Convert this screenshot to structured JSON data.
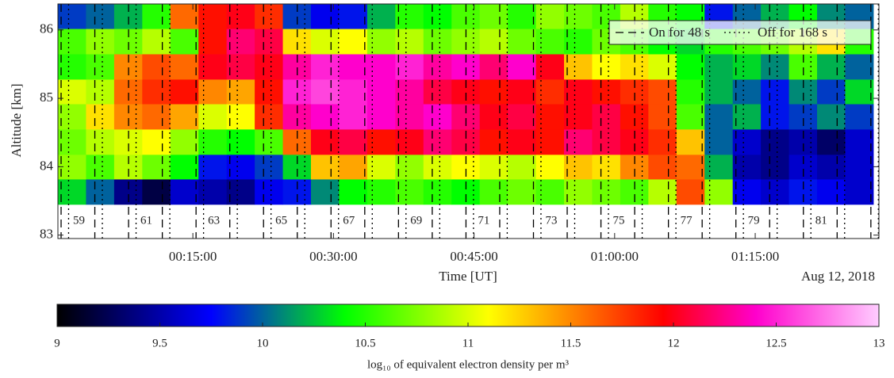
{
  "chart_data": {
    "type": "heatmap",
    "xlabel": "Time [UT]",
    "ylabel": "Altitude [km]",
    "date_label": "Aug 12, 2018",
    "xlim": [
      0.6,
      88.2
    ],
    "xticks": [
      {
        "value": 15,
        "label": "00:15:00"
      },
      {
        "value": 30,
        "label": "00:30:00"
      },
      {
        "value": 45,
        "label": "00:45:00"
      },
      {
        "value": 60,
        "label": "01:00:00"
      },
      {
        "value": 75,
        "label": "01:15:00"
      }
    ],
    "ylim": [
      82.95,
      86.38
    ],
    "yticks": [
      83,
      84,
      85,
      86
    ],
    "xbins": [
      0.6,
      3.6,
      6.6,
      9.6,
      12.6,
      15.6,
      18.6,
      21.6,
      24.6,
      27.6,
      30.6,
      33.6,
      36.6,
      39.6,
      42.6,
      45.6,
      48.6,
      51.6,
      54.6,
      57.6,
      60.6,
      63.6,
      66.6,
      69.6,
      72.6,
      75.6,
      78.6,
      81.6,
      84.6,
      87.6
    ],
    "ybins": [
      83.45,
      83.82,
      84.18,
      84.55,
      84.92,
      85.28,
      85.65,
      86.02,
      86.38
    ],
    "z": [
      [
        10.3,
        10.0,
        9.4,
        9.2,
        9.6,
        9.5,
        9.4,
        9.7,
        9.8,
        10.1,
        10.4,
        10.5,
        10.6,
        10.5,
        10.4,
        10.6,
        10.7,
        10.6,
        10.8,
        10.7,
        10.6,
        10.9,
        11.7,
        10.8,
        9.7,
        9.6,
        9.8,
        9.7,
        9.6
      ],
      [
        10.8,
        10.6,
        10.9,
        10.7,
        10.4,
        9.8,
        9.7,
        9.9,
        10.3,
        11.3,
        11.4,
        11.0,
        10.8,
        11.0,
        11.1,
        11.0,
        10.9,
        11.1,
        11.3,
        11.2,
        11.5,
        11.7,
        11.6,
        10.2,
        9.5,
        9.4,
        9.6,
        9.5,
        9.6
      ],
      [
        10.7,
        10.9,
        11.0,
        11.1,
        10.8,
        10.5,
        10.4,
        10.6,
        11.6,
        12.0,
        12.1,
        11.9,
        12.0,
        12.2,
        12.1,
        11.9,
        12.0,
        11.9,
        12.2,
        12.1,
        12.0,
        11.8,
        11.3,
        10.0,
        9.6,
        9.4,
        9.5,
        9.3,
        9.6
      ],
      [
        10.8,
        11.2,
        11.5,
        11.6,
        11.4,
        11.0,
        11.1,
        11.8,
        12.3,
        12.4,
        12.5,
        12.4,
        12.3,
        12.4,
        12.2,
        12.0,
        12.1,
        11.9,
        12.0,
        12.1,
        11.9,
        11.7,
        10.6,
        10.0,
        10.2,
        9.8,
        9.9,
        10.1,
        9.9
      ],
      [
        11.0,
        10.9,
        11.6,
        11.8,
        11.9,
        11.5,
        11.4,
        11.9,
        12.5,
        12.6,
        12.5,
        12.4,
        12.3,
        12.1,
        12.0,
        11.9,
        12.0,
        11.8,
        12.0,
        11.9,
        11.8,
        11.7,
        10.5,
        10.2,
        10.0,
        9.8,
        10.1,
        9.9,
        10.3
      ],
      [
        10.5,
        10.6,
        11.5,
        11.7,
        11.6,
        12.0,
        12.1,
        12.0,
        12.3,
        12.5,
        12.4,
        12.4,
        12.5,
        12.3,
        12.4,
        12.2,
        12.4,
        12.0,
        11.3,
        11.1,
        11.2,
        11.0,
        10.4,
        10.2,
        10.3,
        10.1,
        10.6,
        10.2,
        10.0
      ],
      [
        10.6,
        10.8,
        10.7,
        10.9,
        10.6,
        11.9,
        12.2,
        12.1,
        11.2,
        11.0,
        11.1,
        10.8,
        10.9,
        10.7,
        10.8,
        10.9,
        10.7,
        10.6,
        10.5,
        10.7,
        10.6,
        10.4,
        10.3,
        10.5,
        10.6,
        10.7,
        10.9,
        11.2,
        10.5
      ],
      [
        9.9,
        10.0,
        10.2,
        10.5,
        11.6,
        11.9,
        12.0,
        11.8,
        9.9,
        9.7,
        9.8,
        10.2,
        10.5,
        10.4,
        10.6,
        10.7,
        10.5,
        10.8,
        10.7,
        10.6,
        10.9,
        10.5,
        10.4,
        9.8,
        10.0,
        10.2,
        10.4,
        10.1,
        10.0
      ]
    ],
    "colormap": [
      [
        9,
        "#000000"
      ],
      [
        9.75,
        "#0000ff"
      ],
      [
        10.4,
        "#00ff00"
      ],
      [
        11.1,
        "#ffff00"
      ],
      [
        11.95,
        "#ff0000"
      ],
      [
        12.4,
        "#ff00cc"
      ],
      [
        13,
        "#ffccff"
      ]
    ],
    "clim": [
      9,
      13
    ],
    "colorbar_ticks": [
      9,
      9.5,
      10,
      10.5,
      11,
      11.5,
      12,
      12.5,
      13
    ],
    "colorbar_label": "log₁₀ of equivalent electron density per m³",
    "legend_position": "upper right",
    "lines": [
      {
        "name": "On for 48 s",
        "dash": "dashed",
        "x": [
          0.94,
          4.54,
          8.14,
          11.74,
          15.34,
          18.94,
          22.54,
          26.14,
          29.74,
          33.34,
          36.94,
          40.54,
          44.14,
          47.74,
          51.34,
          54.94,
          58.54,
          62.14,
          65.74,
          69.34,
          72.94,
          76.54,
          80.14,
          83.74,
          87.34
        ]
      },
      {
        "name": "Off for 168 s",
        "dash": "dotted",
        "x": [
          1.74,
          5.34,
          8.94,
          12.54,
          16.14,
          19.74,
          23.34,
          26.94,
          30.54,
          34.14,
          37.74,
          41.34,
          44.94,
          48.54,
          52.14,
          55.74,
          59.34,
          62.94,
          66.54,
          70.14,
          73.74,
          77.34,
          80.94,
          84.54,
          88.14
        ]
      }
    ],
    "cycle_labels": {
      "labels": [
        "59",
        "61",
        "63",
        "65",
        "67",
        "69",
        "71",
        "73",
        "75",
        "77",
        "79",
        "81"
      ],
      "x": [
        2.84,
        10.04,
        17.24,
        24.44,
        31.64,
        38.84,
        46.04,
        53.24,
        60.44,
        67.64,
        74.84,
        82.04
      ]
    }
  }
}
